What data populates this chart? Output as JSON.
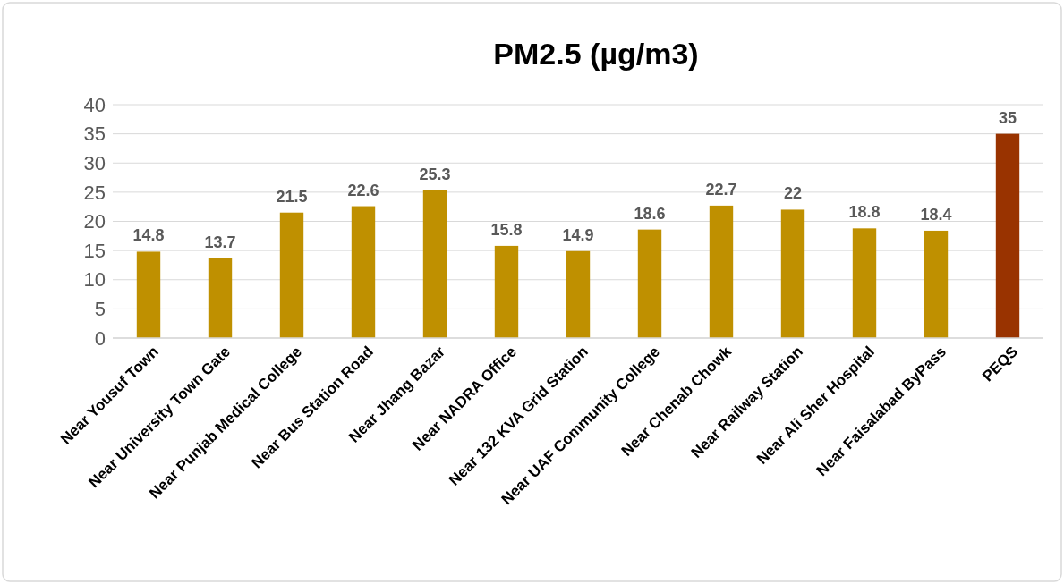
{
  "chart_data": {
    "type": "bar",
    "title": "PM2.5 (µg/m3)",
    "categories": [
      "Near Yousuf Town",
      "Near University Town Gate",
      "Near Punjab Medical College",
      "Near Bus Station Road",
      "Near Jhang Bazar",
      "Near NADRA Office",
      "Near 132 KVA Grid Station",
      "Near UAF Community College",
      "Near Chenab Chowk",
      "Near Railway Station",
      "Near Ali Sher Hospital",
      "Near Faisalabad ByPass",
      "PEQS"
    ],
    "values": [
      14.8,
      13.7,
      21.5,
      22.6,
      25.3,
      15.8,
      14.9,
      18.6,
      22.7,
      22,
      18.8,
      18.4,
      35
    ],
    "colors": [
      "#bf9000",
      "#bf9000",
      "#bf9000",
      "#bf9000",
      "#bf9000",
      "#bf9000",
      "#bf9000",
      "#bf9000",
      "#bf9000",
      "#bf9000",
      "#bf9000",
      "#bf9000",
      "#993300"
    ],
    "ylim": [
      0,
      40
    ],
    "yticks": [
      0,
      5,
      10,
      15,
      20,
      25,
      30,
      35,
      40
    ],
    "grid": "y",
    "data_labels": true
  }
}
